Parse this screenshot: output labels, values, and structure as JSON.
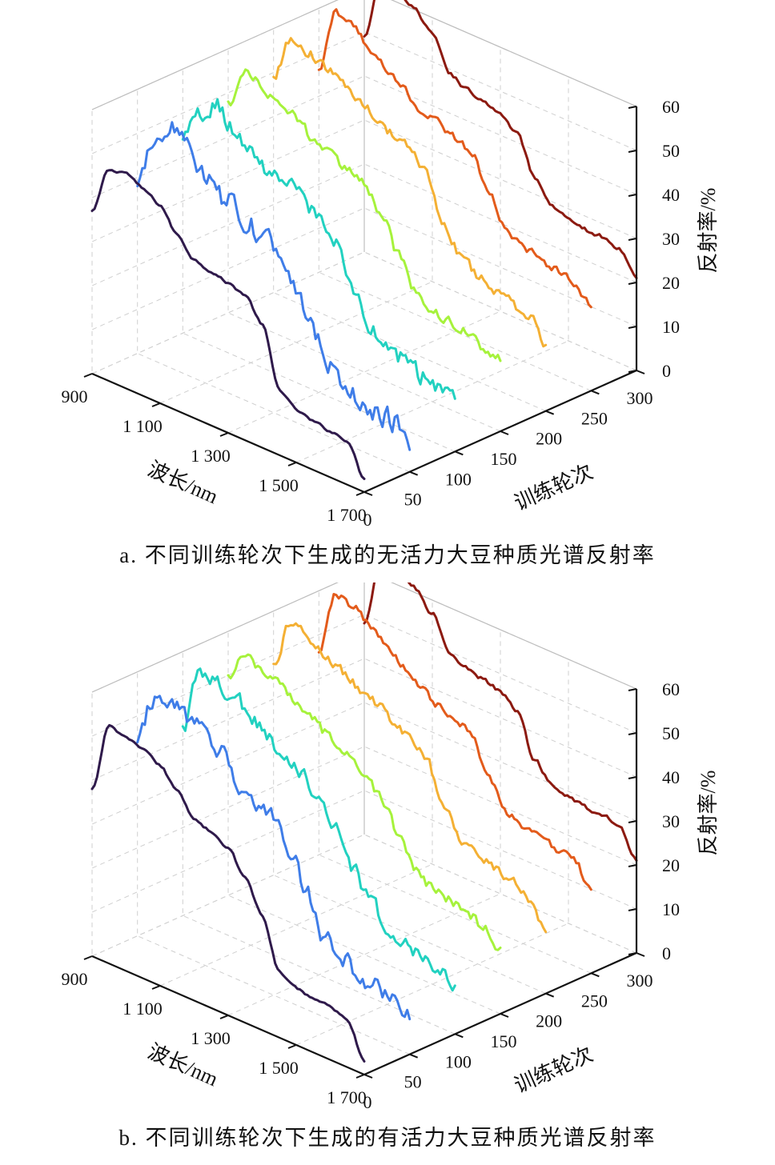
{
  "chart_data": [
    {
      "type": "line",
      "subtype": "3d-waterfall",
      "caption": "a. 不同训练轮次下生成的无活力大豆种质光谱反射率",
      "xlabel": "波长/nm",
      "ylabel": "训练轮次",
      "zlabel": "反射率/%",
      "x_ticks": [
        "900",
        "1 100",
        "1 300",
        "1 500",
        "1 700"
      ],
      "y_ticks": [
        "0",
        "50",
        "100",
        "150",
        "200",
        "250",
        "300"
      ],
      "z_ticks": [
        "0",
        "10",
        "20",
        "30",
        "40",
        "50",
        "60"
      ],
      "xlim": [
        900,
        1700
      ],
      "ylim": [
        0,
        300
      ],
      "zlim": [
        0,
        60
      ],
      "grid": true,
      "colormap": "turbo",
      "wavelength": [
        900,
        950,
        1000,
        1050,
        1100,
        1150,
        1200,
        1250,
        1300,
        1350,
        1400,
        1450,
        1500,
        1550,
        1600,
        1650,
        1700
      ],
      "series": [
        {
          "epoch": 0,
          "color": "#2f1a4b",
          "noise": 0.5,
          "values": [
            37,
            48,
            49,
            47,
            45,
            40,
            36,
            35,
            34,
            33,
            28,
            15,
            12,
            11,
            10.5,
            10,
            3
          ]
        },
        {
          "epoch": 50,
          "color": "#3f7de8",
          "noise": 4.5,
          "values": [
            38,
            52,
            55,
            52,
            48,
            44,
            42,
            40,
            37,
            33,
            25,
            18,
            14,
            12,
            11,
            10,
            5
          ]
        },
        {
          "epoch": 100,
          "color": "#22d1c0",
          "noise": 3.5,
          "values": [
            44,
            52,
            55,
            51,
            48,
            46,
            44,
            42,
            40,
            37,
            27,
            20,
            17,
            16,
            14,
            13,
            12
          ]
        },
        {
          "epoch": 150,
          "color": "#a6f23c",
          "noise": 2.0,
          "values": [
            48,
            56,
            55,
            53,
            51,
            48,
            46,
            44,
            43,
            38,
            30,
            23,
            21,
            20,
            19,
            17,
            16
          ]
        },
        {
          "epoch": 200,
          "color": "#f4b034",
          "noise": 2.0,
          "values": [
            49,
            59,
            58,
            56,
            55,
            52,
            50,
            48,
            46,
            42,
            33,
            27,
            24,
            22,
            21,
            20,
            15
          ]
        },
        {
          "epoch": 250,
          "color": "#e35b1b",
          "noise": 1.5,
          "values": [
            46,
            61,
            59,
            56,
            53,
            50,
            46,
            46,
            44,
            42,
            35,
            28,
            26,
            25,
            24,
            23,
            19
          ]
        },
        {
          "epoch": 300,
          "color": "#8c1a10",
          "noise": 0.8,
          "values": [
            49,
            64,
            62,
            60,
            56,
            49,
            47,
            46,
            45,
            42,
            34,
            29,
            28,
            27,
            27,
            26,
            21
          ]
        }
      ]
    },
    {
      "type": "line",
      "subtype": "3d-waterfall",
      "caption": "b. 不同训练轮次下生成的有活力大豆种质光谱反射率",
      "xlabel": "波长/nm",
      "ylabel": "训练轮次",
      "zlabel": "反射率/%",
      "x_ticks": [
        "900",
        "1 100",
        "1 300",
        "1 500",
        "1 700"
      ],
      "y_ticks": [
        "0",
        "50",
        "100",
        "150",
        "200",
        "250",
        "300"
      ],
      "z_ticks": [
        "0",
        "10",
        "20",
        "30",
        "40",
        "50",
        "60"
      ],
      "xlim": [
        900,
        1700
      ],
      "ylim": [
        0,
        300
      ],
      "zlim": [
        0,
        60
      ],
      "grid": true,
      "colormap": "turbo",
      "wavelength": [
        900,
        950,
        1000,
        1050,
        1100,
        1150,
        1200,
        1250,
        1300,
        1350,
        1400,
        1450,
        1500,
        1550,
        1600,
        1650,
        1700
      ],
      "series": [
        {
          "epoch": 0,
          "color": "#2f1a4b",
          "noise": 0.5,
          "values": [
            38,
            54,
            53,
            52,
            50,
            46,
            41,
            40,
            38,
            33,
            26,
            15,
            13,
            12,
            12,
            11,
            3
          ]
        },
        {
          "epoch": 50,
          "color": "#3f7de8",
          "noise": 3.5,
          "values": [
            44,
            56,
            56,
            54,
            53,
            50,
            45,
            42,
            40,
            35,
            26,
            18,
            15,
            13,
            12,
            11,
            8
          ]
        },
        {
          "epoch": 100,
          "color": "#22d1c0",
          "noise": 3.0,
          "values": [
            43,
            57,
            56,
            55,
            52,
            49,
            46,
            44,
            40,
            36,
            28,
            22,
            18,
            16,
            15,
            13,
            11
          ]
        },
        {
          "epoch": 150,
          "color": "#a6f23c",
          "noise": 2.0,
          "values": [
            50,
            56,
            55,
            53,
            51,
            48,
            46,
            45,
            42,
            37,
            31,
            24,
            22,
            21,
            20,
            18,
            15
          ]
        },
        {
          "epoch": 200,
          "color": "#f4b034",
          "noise": 2.0,
          "values": [
            48,
            59,
            58,
            55,
            53,
            51,
            49,
            47,
            45,
            41,
            33,
            27,
            25,
            23,
            22,
            20,
            14
          ]
        },
        {
          "epoch": 250,
          "color": "#e35b1b",
          "noise": 1.5,
          "values": [
            46,
            61,
            60,
            57,
            54,
            51,
            48,
            46,
            45,
            42,
            34,
            28,
            27,
            26,
            25,
            24,
            19
          ]
        },
        {
          "epoch": 300,
          "color": "#8c1a10",
          "noise": 0.8,
          "values": [
            48,
            64,
            63,
            61,
            57,
            50,
            48,
            47,
            46,
            43,
            34,
            30,
            29,
            28,
            28,
            27,
            21
          ]
        }
      ]
    }
  ]
}
